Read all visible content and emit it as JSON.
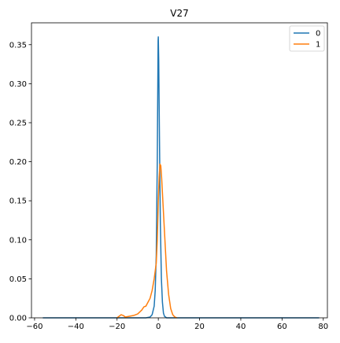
{
  "chart_data": {
    "type": "line",
    "title": "V27",
    "xlabel": "",
    "ylabel": "",
    "xlim": [
      -61.5,
      82
    ],
    "ylim": [
      0,
      0.378
    ],
    "xticks": [
      -60,
      -40,
      -20,
      0,
      20,
      40,
      60,
      80
    ],
    "xtick_labels": [
      "−60",
      "−40",
      "−20",
      "0",
      "20",
      "40",
      "60",
      "80"
    ],
    "yticks": [
      0.0,
      0.05,
      0.1,
      0.15,
      0.2,
      0.25,
      0.3,
      0.35
    ],
    "ytick_labels": [
      "0.00",
      "0.05",
      "0.10",
      "0.15",
      "0.20",
      "0.25",
      "0.30",
      "0.35"
    ],
    "grid": false,
    "legend_position": "top-right",
    "series": [
      {
        "name": "0",
        "color": "#1f77b4",
        "points": [
          [
            -56,
            0
          ],
          [
            -40,
            0
          ],
          [
            -20,
            0
          ],
          [
            -6,
            0.0
          ],
          [
            -4,
            0.001
          ],
          [
            -3,
            0.004
          ],
          [
            -2,
            0.015
          ],
          [
            -1.5,
            0.035
          ],
          [
            -1,
            0.08
          ],
          [
            -0.5,
            0.2
          ],
          [
            -0.1,
            0.355
          ],
          [
            0,
            0.36
          ],
          [
            0.2,
            0.33
          ],
          [
            0.6,
            0.22
          ],
          [
            1,
            0.12
          ],
          [
            1.5,
            0.05
          ],
          [
            2,
            0.02
          ],
          [
            2.5,
            0.006
          ],
          [
            3,
            0.002
          ],
          [
            4,
            0.0
          ],
          [
            20,
            0
          ],
          [
            40,
            0
          ],
          [
            60,
            0
          ],
          [
            78,
            0
          ]
        ]
      },
      {
        "name": "1",
        "color": "#ff7f0e",
        "points": [
          [
            -20,
            0.0
          ],
          [
            -19,
            0.002
          ],
          [
            -18,
            0.004
          ],
          [
            -17,
            0.003
          ],
          [
            -16,
            0.001
          ],
          [
            -14,
            0.002
          ],
          [
            -12,
            0.003
          ],
          [
            -10,
            0.005
          ],
          [
            -8,
            0.01
          ],
          [
            -7,
            0.014
          ],
          [
            -6,
            0.015
          ],
          [
            -5,
            0.02
          ],
          [
            -4,
            0.025
          ],
          [
            -3,
            0.035
          ],
          [
            -2,
            0.05
          ],
          [
            -1,
            0.07
          ],
          [
            -0.5,
            0.1
          ],
          [
            0,
            0.15
          ],
          [
            0.4,
            0.18
          ],
          [
            0.8,
            0.197
          ],
          [
            1.2,
            0.195
          ],
          [
            1.6,
            0.18
          ],
          [
            2,
            0.16
          ],
          [
            3,
            0.11
          ],
          [
            4,
            0.06
          ],
          [
            5,
            0.03
          ],
          [
            6,
            0.012
          ],
          [
            7,
            0.004
          ],
          [
            8,
            0.001
          ],
          [
            9,
            0.0
          ]
        ]
      }
    ]
  }
}
